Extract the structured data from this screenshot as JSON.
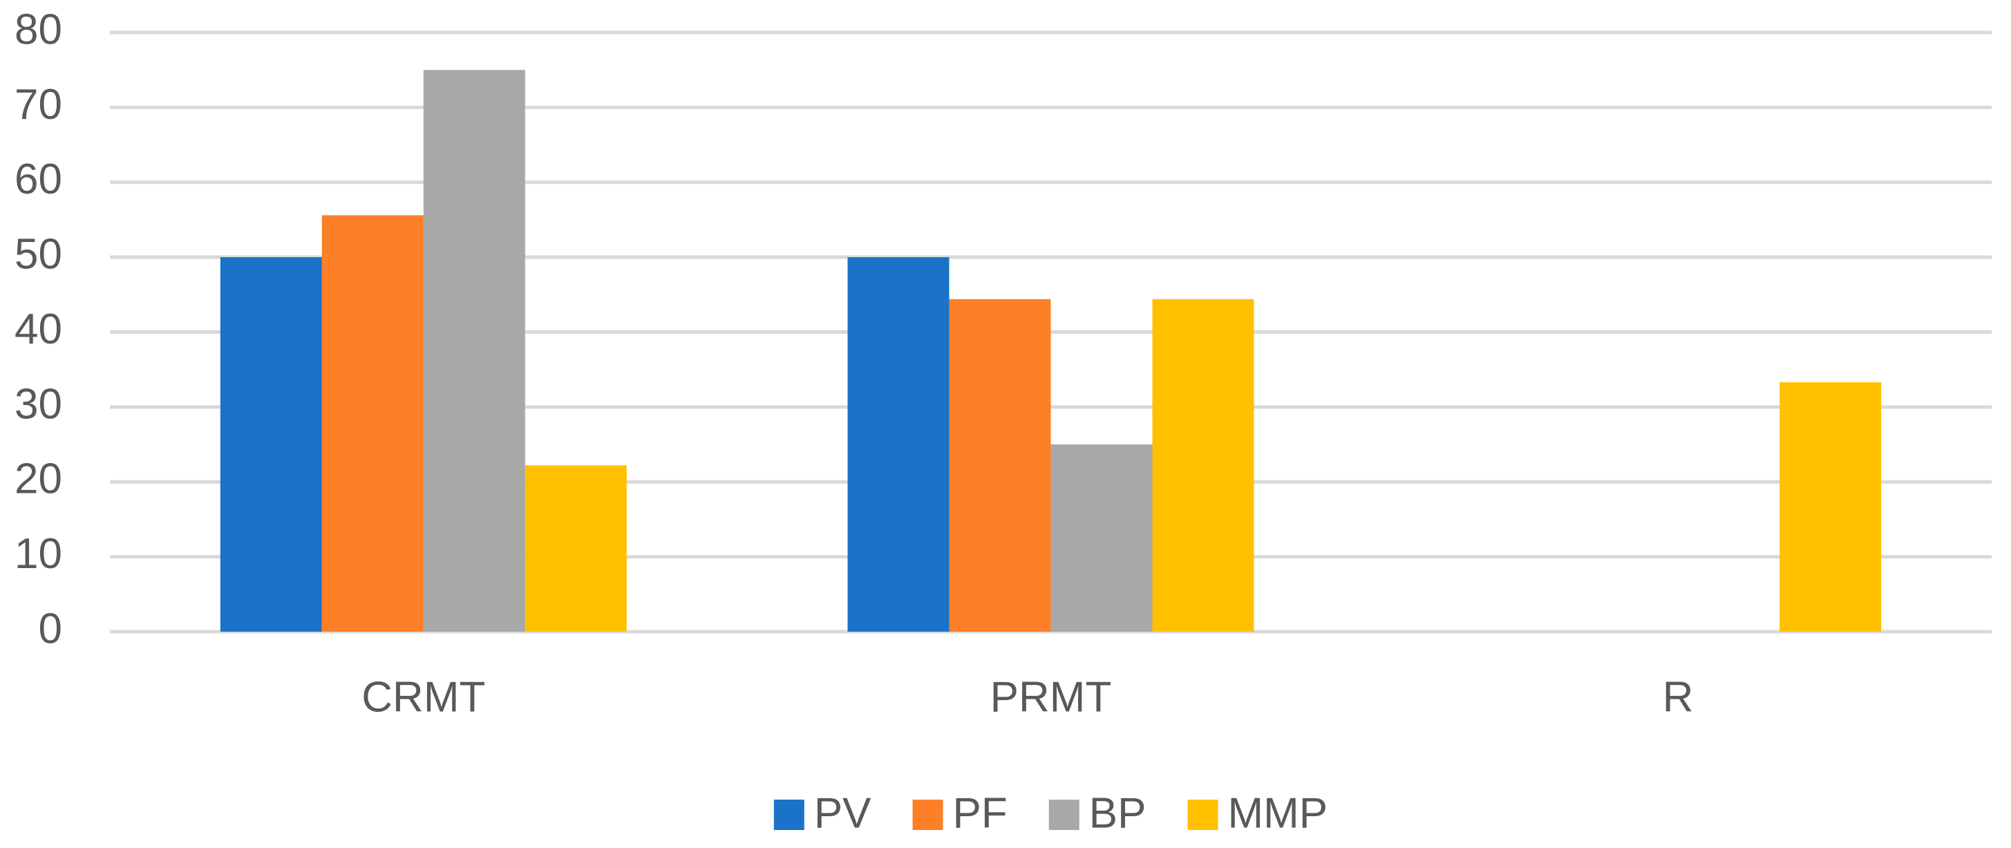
{
  "chart_data": {
    "type": "bar",
    "categories": [
      "CRMT",
      "PRMT",
      "R"
    ],
    "series": [
      {
        "name": "PV",
        "color": "#1a73c8",
        "values": [
          50,
          50,
          0
        ]
      },
      {
        "name": "PF",
        "color": "#fd7f28",
        "values": [
          55.6,
          44.4,
          0
        ]
      },
      {
        "name": "BP",
        "color": "#a8a8a8",
        "values": [
          75,
          25,
          0
        ]
      },
      {
        "name": "MMP",
        "color": "#ffc000",
        "values": [
          22.2,
          44.4,
          33.3
        ]
      }
    ],
    "ylim": [
      0,
      80
    ],
    "yticks": [
      0,
      10,
      20,
      30,
      40,
      50,
      60,
      70,
      80
    ],
    "grid": true,
    "legend": "bottom"
  }
}
